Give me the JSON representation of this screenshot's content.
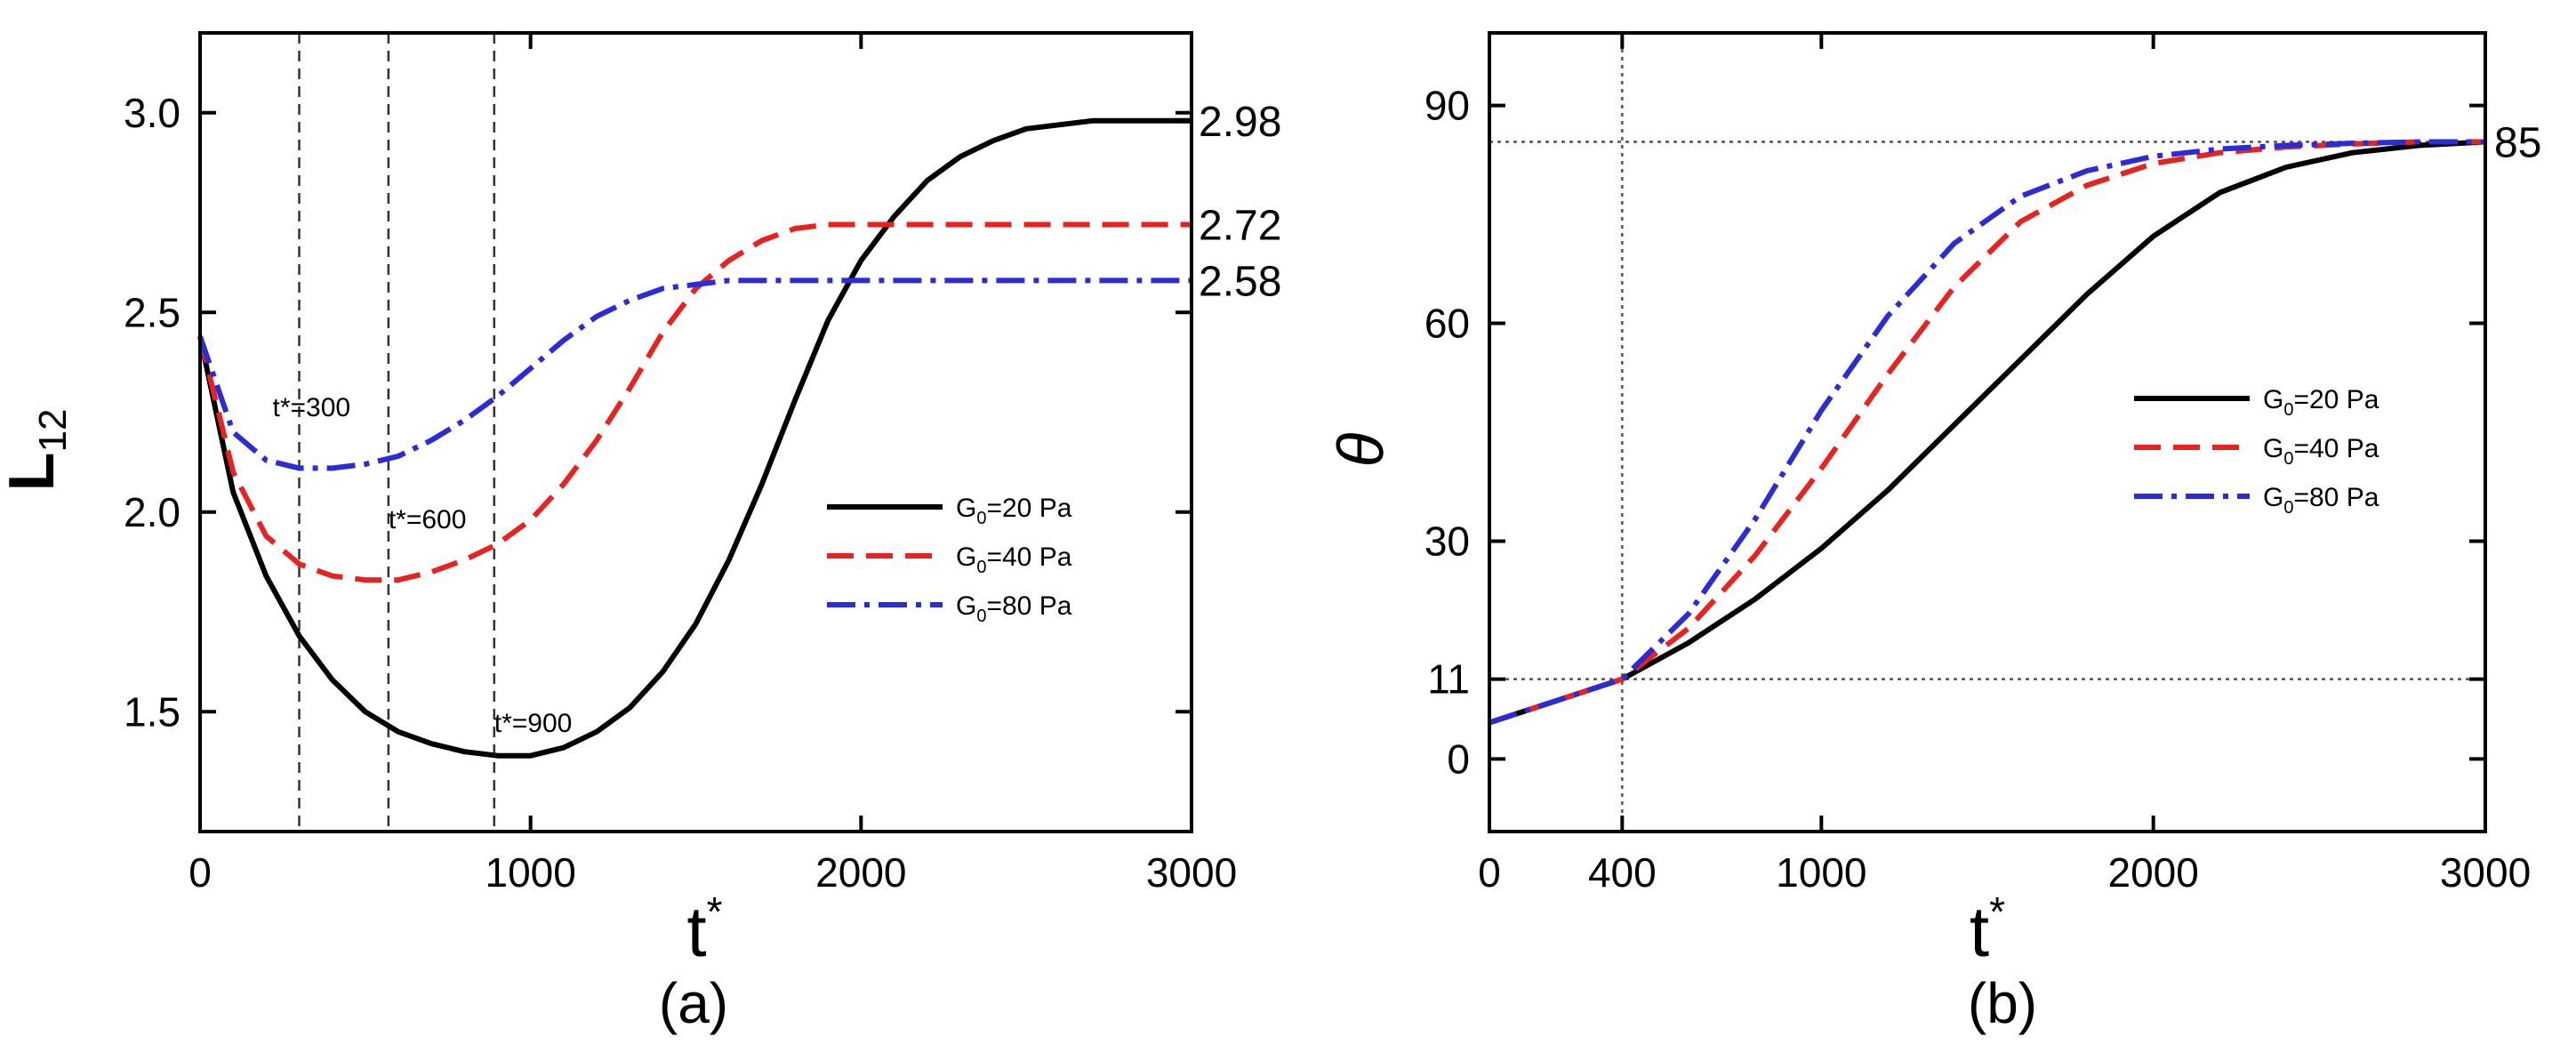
{
  "chart_data": [
    {
      "panel": "(a)",
      "type": "line",
      "xlabel": "t",
      "xlabel_sup": "*",
      "ylabel": "L",
      "ylabel_sub": "12",
      "xlim": [
        0,
        3000
      ],
      "ylim": [
        1.2,
        3.2
      ],
      "xticks": [
        0,
        1000,
        2000,
        3000
      ],
      "xtick_labels": [
        "0",
        "1000",
        "2000",
        "3000"
      ],
      "yticks": [
        1.5,
        2.0,
        2.5,
        3.0
      ],
      "ytick_labels": [
        "1.5",
        "2.0",
        "2.5",
        "3.0"
      ],
      "vlines": [
        300,
        570,
        890
      ],
      "annotations": [
        {
          "text": "t*=300",
          "x": 300,
          "y": 2.24
        },
        {
          "text": "t*=600",
          "x": 570,
          "y": 1.96
        },
        {
          "text": "t*=900",
          "x": 890,
          "y": 1.45
        }
      ],
      "end_labels": [
        {
          "text": "2.98",
          "y": 2.98
        },
        {
          "text": "2.72",
          "y": 2.72
        },
        {
          "text": "2.58",
          "y": 2.58
        }
      ],
      "legend": {
        "loc": "center-right"
      },
      "series": [
        {
          "name": "G0=20 Pa",
          "label_main": "G",
          "label_sub": "0",
          "label_rest": "=20 Pa",
          "color": "#000000",
          "style": "solid",
          "x": [
            0,
            100,
            200,
            300,
            400,
            500,
            600,
            700,
            800,
            900,
            1000,
            1100,
            1200,
            1300,
            1400,
            1500,
            1600,
            1700,
            1800,
            1900,
            2000,
            2100,
            2200,
            2300,
            2400,
            2500,
            2600,
            2700,
            2800,
            2900,
            3000
          ],
          "y": [
            2.44,
            2.05,
            1.84,
            1.69,
            1.58,
            1.5,
            1.45,
            1.42,
            1.4,
            1.39,
            1.39,
            1.41,
            1.45,
            1.51,
            1.6,
            1.72,
            1.88,
            2.07,
            2.28,
            2.48,
            2.63,
            2.74,
            2.83,
            2.89,
            2.93,
            2.96,
            2.97,
            2.98,
            2.98,
            2.98,
            2.98
          ]
        },
        {
          "name": "G0=40 Pa",
          "label_main": "G",
          "label_sub": "0",
          "label_rest": "=40 Pa",
          "color": "#e8231f",
          "style": "dashed",
          "x": [
            0,
            100,
            200,
            300,
            400,
            500,
            600,
            700,
            800,
            900,
            1000,
            1100,
            1200,
            1300,
            1400,
            1500,
            1600,
            1700,
            1800,
            1900,
            2000,
            2200,
            2400,
            2600,
            2800,
            3000
          ],
          "y": [
            2.44,
            2.1,
            1.94,
            1.87,
            1.84,
            1.83,
            1.83,
            1.85,
            1.88,
            1.92,
            1.98,
            2.07,
            2.18,
            2.31,
            2.45,
            2.56,
            2.63,
            2.68,
            2.71,
            2.72,
            2.72,
            2.72,
            2.72,
            2.72,
            2.72,
            2.72
          ]
        },
        {
          "name": "G0=80 Pa",
          "label_main": "G",
          "label_sub": "0",
          "label_rest": "=80 Pa",
          "color": "#2b2bd8",
          "style": "dashdot",
          "x": [
            0,
            100,
            200,
            300,
            400,
            500,
            600,
            700,
            800,
            900,
            1000,
            1100,
            1200,
            1300,
            1400,
            1500,
            1600,
            1700,
            1800,
            2000,
            2200,
            2400,
            2600,
            2800,
            3000
          ],
          "y": [
            2.44,
            2.2,
            2.13,
            2.11,
            2.11,
            2.12,
            2.14,
            2.18,
            2.23,
            2.29,
            2.36,
            2.43,
            2.49,
            2.53,
            2.56,
            2.57,
            2.58,
            2.58,
            2.58,
            2.58,
            2.58,
            2.58,
            2.58,
            2.58,
            2.58
          ]
        }
      ]
    },
    {
      "panel": "(b)",
      "type": "line",
      "xlabel": "t",
      "xlabel_sup": "*",
      "ylabel": "θ",
      "xlim": [
        0,
        3000
      ],
      "ylim": [
        -10,
        100
      ],
      "xticks": [
        0,
        400,
        1000,
        2000,
        3000
      ],
      "xtick_labels": [
        "0",
        "400",
        "1000",
        "2000",
        "3000"
      ],
      "yticks": [
        0,
        11,
        30,
        60,
        90
      ],
      "ytick_labels": [
        "0",
        "11",
        "30",
        "60",
        "90"
      ],
      "ref_x": 400,
      "ref_y": [
        11,
        85
      ],
      "end_labels": [
        {
          "text": "85",
          "y": 85
        }
      ],
      "legend": {
        "loc": "center-right"
      },
      "series": [
        {
          "name": "G0=20 Pa",
          "label_main": "G",
          "label_sub": "0",
          "label_rest": "=20 Pa",
          "color": "#000000",
          "style": "solid",
          "x": [
            0,
            200,
            400,
            600,
            800,
            1000,
            1200,
            1400,
            1600,
            1800,
            2000,
            2200,
            2400,
            2600,
            2800,
            3000
          ],
          "y": [
            5,
            8,
            11,
            16,
            22,
            29,
            37,
            46,
            55,
            64,
            72,
            78,
            81.5,
            83.5,
            84.5,
            85
          ]
        },
        {
          "name": "G0=40 Pa",
          "label_main": "G",
          "label_sub": "0",
          "label_rest": "=40 Pa",
          "color": "#e8231f",
          "style": "dashed",
          "x": [
            0,
            200,
            400,
            600,
            800,
            1000,
            1200,
            1400,
            1600,
            1800,
            2000,
            2200,
            2400,
            2600,
            2800,
            3000
          ],
          "y": [
            5,
            8,
            11,
            18,
            28,
            40,
            53,
            65,
            74,
            79,
            82,
            83.5,
            84.3,
            84.7,
            85,
            85
          ]
        },
        {
          "name": "G0=80 Pa",
          "label_main": "G",
          "label_sub": "0",
          "label_rest": "=80 Pa",
          "color": "#2b2bd8",
          "style": "dashdot",
          "x": [
            0,
            200,
            400,
            600,
            800,
            1000,
            1200,
            1400,
            1600,
            1800,
            2000,
            2200,
            2400,
            2600,
            2800,
            3000
          ],
          "y": [
            5,
            8,
            11,
            20,
            33,
            48,
            61,
            71,
            77.5,
            81,
            83,
            84,
            84.5,
            84.8,
            85,
            85
          ]
        }
      ]
    }
  ]
}
